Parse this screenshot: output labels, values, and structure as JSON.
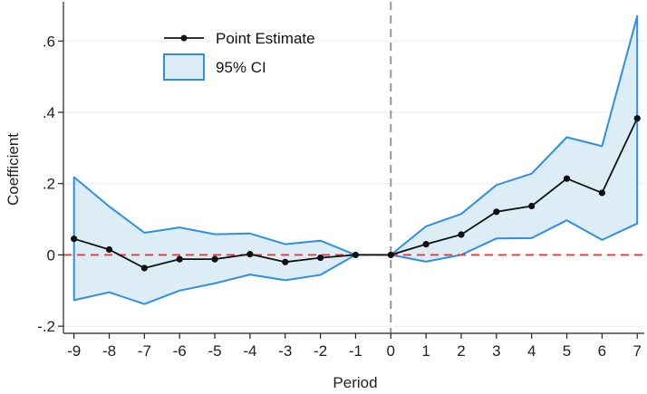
{
  "chart_data": {
    "type": "line",
    "title": "",
    "xlabel": "Period",
    "ylabel": "Coefficient",
    "x": [
      -9,
      -8,
      -7,
      -6,
      -5,
      -4,
      -3,
      -2,
      -1,
      0,
      1,
      2,
      3,
      4,
      5,
      6,
      7
    ],
    "xlim": [
      -9.3,
      7.2
    ],
    "ylim": [
      -0.22,
      0.71
    ],
    "x_ticks": [
      -9,
      -8,
      -7,
      -6,
      -5,
      -4,
      -3,
      -2,
      -1,
      0,
      1,
      2,
      3,
      4,
      5,
      6,
      7
    ],
    "x_tick_labels": [
      "-9",
      "-8",
      "-7",
      "-6",
      "-5",
      "-4",
      "-3",
      "-2",
      "-1",
      "0",
      "1",
      "2",
      "3",
      "4",
      "5",
      "6",
      "7"
    ],
    "y_ticks": [
      -0.2,
      0,
      0.2,
      0.4,
      0.6
    ],
    "y_tick_labels": [
      "-.2",
      "0",
      ".2",
      ".4",
      ".6"
    ],
    "grid": true,
    "legend_position": "top-left",
    "series": [
      {
        "name": "Point Estimate",
        "type": "line",
        "values": [
          0.045,
          0.015,
          -0.037,
          -0.012,
          -0.012,
          0.002,
          -0.02,
          -0.008,
          0,
          0,
          0.03,
          0.057,
          0.121,
          0.137,
          0.214,
          0.174,
          0.383
        ]
      },
      {
        "name": "95% CI",
        "type": "band",
        "lower": [
          -0.127,
          -0.105,
          -0.138,
          -0.1,
          -0.08,
          -0.055,
          -0.071,
          -0.056,
          0,
          0,
          -0.019,
          0,
          0.046,
          0.047,
          0.097,
          0.042,
          0.088
        ],
        "upper": [
          0.218,
          0.136,
          0.062,
          0.077,
          0.058,
          0.06,
          0.03,
          0.04,
          0,
          0,
          0.08,
          0.115,
          0.196,
          0.228,
          0.33,
          0.305,
          0.67
        ]
      }
    ],
    "reference_lines": [
      {
        "axis": "y",
        "value": 0,
        "style": "dashed",
        "color": "#e33b3b"
      },
      {
        "axis": "x",
        "value": 0,
        "style": "dashed",
        "color": "#8c8c8c"
      }
    ]
  },
  "colors": {
    "band_fill": "#dcedf5",
    "band_stroke": "#2e8fe6",
    "line": "#111111",
    "grid": "#ebebeb",
    "axis": "#222222"
  }
}
